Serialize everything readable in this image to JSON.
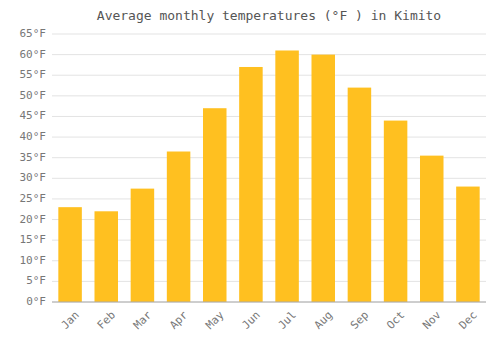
{
  "chart_data": {
    "type": "bar",
    "title": "Average monthly temperatures (°F ) in Kimito",
    "categories": [
      "Jan",
      "Feb",
      "Mar",
      "Apr",
      "May",
      "Jun",
      "Jul",
      "Aug",
      "Sep",
      "Oct",
      "Nov",
      "Dec"
    ],
    "values": [
      23,
      22,
      27.5,
      36.5,
      47,
      57,
      61,
      60,
      52,
      44,
      35.5,
      28
    ],
    "color": "#FFC020",
    "ylim": [
      0,
      65
    ],
    "yticks": [
      {
        "value": 0,
        "label": "0°F"
      },
      {
        "value": 5,
        "label": "5°F"
      },
      {
        "value": 10,
        "label": "10°F"
      },
      {
        "value": 15,
        "label": "15°F"
      },
      {
        "value": 20,
        "label": "20°F"
      },
      {
        "value": 25,
        "label": "25°F"
      },
      {
        "value": 30,
        "label": "30°F"
      },
      {
        "value": 35,
        "label": "35°F"
      },
      {
        "value": 40,
        "label": "40°F"
      },
      {
        "value": 45,
        "label": "45°F"
      },
      {
        "value": 50,
        "label": "50°F"
      },
      {
        "value": 55,
        "label": "55°F"
      },
      {
        "value": 60,
        "label": "60°F"
      },
      {
        "value": 65,
        "label": "65°F"
      }
    ],
    "grid": true
  }
}
